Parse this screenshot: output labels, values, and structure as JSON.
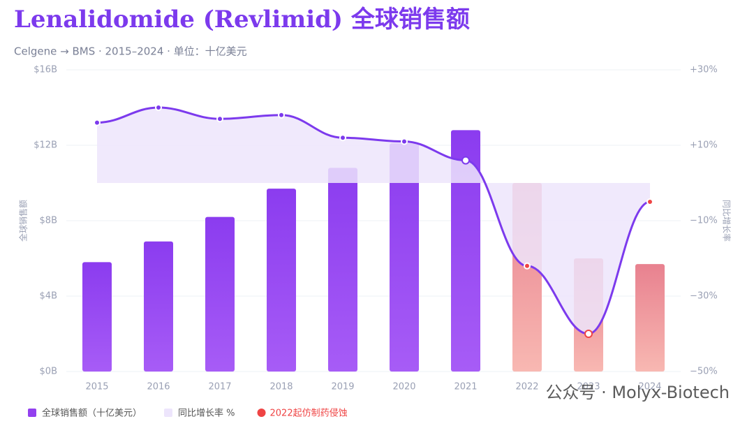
{
  "chart_data": {
    "type": "bar-line",
    "title": "Lenalidomide (Revlimid) 全球销售额",
    "subtitle": "Celgene → BMS · 2015–2024 · 单位：十亿美元",
    "y_label": "全球销售额",
    "y2_label": "同比增长率",
    "categories": [
      "2015",
      "2016",
      "2017",
      "2018",
      "2019",
      "2020",
      "2021",
      "2022",
      "2023",
      "2024"
    ],
    "series": [
      {
        "name": "全球销售额（十亿美元）",
        "type": "bar",
        "color": "#9340ef",
        "colors": [
          "#9340ef",
          "#9340ef",
          "#9340ef",
          "#9340ef",
          "#9340ef",
          "#9340ef",
          "#9340ef",
          "#ec8391",
          "#ec8391",
          "#ec8391"
        ],
        "values": [
          5.8,
          6.9,
          8.2,
          9.7,
          10.8,
          12.1,
          12.8,
          10.0,
          6.0,
          5.7
        ]
      },
      {
        "name": "同比增长率 %",
        "type": "line",
        "axis": "y2",
        "color": "#7c3aed",
        "area_color": "#ede5fc",
        "point_colors": [
          "#7c3aed",
          "#7c3aed",
          "#7c3aed",
          "#7c3aed",
          "#7c3aed",
          "#7c3aed",
          "#ffffff",
          "#ef4444",
          "#ffffff",
          "#ef4444"
        ],
        "values": [
          16,
          20,
          17,
          18,
          12,
          11,
          6,
          -22,
          -40,
          -5
        ]
      }
    ],
    "marker_legend": {
      "name": "2022起仿制药侵蚀",
      "color": "#ef4444"
    },
    "ylim": [
      0,
      16
    ],
    "yticks": [
      {
        "value": 0,
        "label": "$0B"
      },
      {
        "value": 4,
        "label": "$4B"
      },
      {
        "value": 8,
        "label": "$8B"
      },
      {
        "value": 12,
        "label": "$12B"
      },
      {
        "value": 16,
        "label": "$16B"
      }
    ],
    "y2lim": [
      -50,
      30
    ],
    "y2ticks": [
      {
        "value": -50,
        "label": "−50%"
      },
      {
        "value": -30,
        "label": "−30%"
      },
      {
        "value": -10,
        "label": "−10%"
      },
      {
        "value": 10,
        "label": "+10%"
      },
      {
        "value": 30,
        "label": "+30%"
      }
    ],
    "grid": true,
    "watermark": "公众号 · Molyx-Biotech"
  }
}
